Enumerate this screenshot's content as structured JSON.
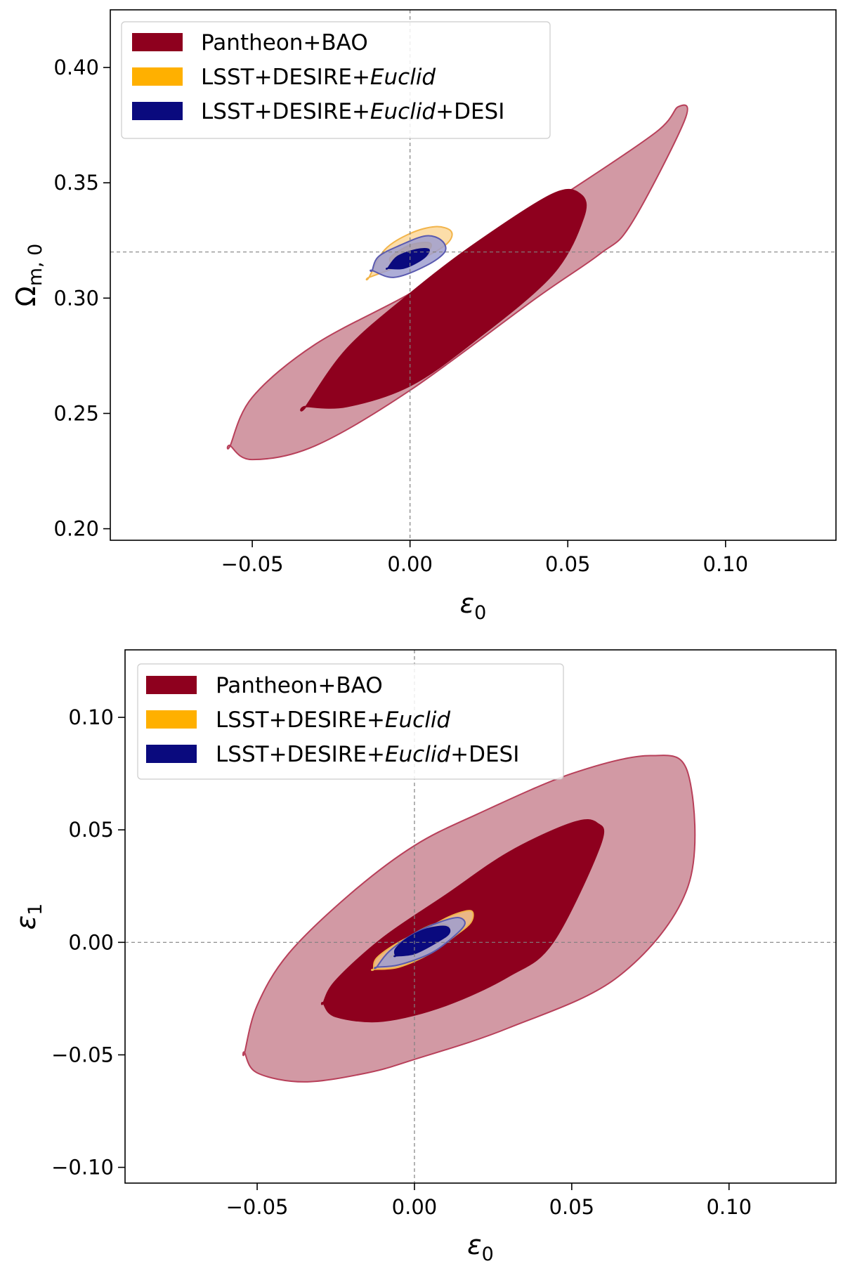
{
  "chart_data": [
    {
      "type": "contour",
      "title": "",
      "xlabel": "ε",
      "xlabel_sub": "0",
      "ylabel": "Ω",
      "ylabel_sub": "m, 0",
      "xlim": [
        -0.095,
        0.135
      ],
      "ylim": [
        0.195,
        0.425
      ],
      "xticks": [
        -0.05,
        0.0,
        0.05,
        0.1
      ],
      "xtick_labels": [
        "−0.05",
        "0.00",
        "0.05",
        "0.10"
      ],
      "yticks": [
        0.2,
        0.25,
        0.3,
        0.35,
        0.4
      ],
      "ytick_labels": [
        "0.20",
        "0.25",
        "0.30",
        "0.35",
        "0.40"
      ],
      "reference": {
        "x": 0.0,
        "y": 0.32
      },
      "legend": {
        "placement": "top-left",
        "entries": [
          {
            "label": "Pantheon+BAO",
            "color": "#8e001e"
          },
          {
            "label_plain": "LSST+DESIRE+",
            "label_italic": "Euclid",
            "label_tail": "",
            "color": "#ffb000"
          },
          {
            "label_plain": "LSST+DESIRE+",
            "label_italic": "Euclid",
            "label_tail": "+DESI",
            "color": "#0a0a7e"
          }
        ]
      },
      "series": [
        {
          "name": "Pantheon+BAO 2σ",
          "color": "#8e001e",
          "level": "2sigma",
          "x": [
            -0.057,
            -0.05,
            -0.03,
            0.0,
            0.04,
            0.06,
            0.07,
            0.087,
            0.085,
            0.078,
            0.05,
            0.02,
            0.0,
            -0.03,
            -0.05,
            -0.057
          ],
          "y": [
            0.236,
            0.23,
            0.236,
            0.26,
            0.3,
            0.319,
            0.332,
            0.377,
            0.383,
            0.372,
            0.346,
            0.32,
            0.302,
            0.28,
            0.257,
            0.236
          ]
        },
        {
          "name": "Pantheon+BAO 1σ",
          "color": "#8e001e",
          "level": "1sigma",
          "x": [
            -0.033,
            -0.02,
            0.0,
            0.02,
            0.045,
            0.055,
            0.054,
            0.045,
            0.02,
            0.0,
            -0.02,
            -0.033
          ],
          "y": [
            0.253,
            0.253,
            0.262,
            0.281,
            0.31,
            0.335,
            0.345,
            0.345,
            0.323,
            0.302,
            0.278,
            0.253
          ]
        },
        {
          "name": "LSST+DESIRE+Euclid 2σ",
          "color": "#ffb000",
          "level": "2sigma",
          "x": [
            -0.013,
            -0.005,
            0.005,
            0.012,
            0.013,
            0.008,
            0.0,
            -0.008,
            -0.013
          ],
          "y": [
            0.309,
            0.313,
            0.318,
            0.324,
            0.329,
            0.331,
            0.328,
            0.321,
            0.309
          ]
        },
        {
          "name": "LSST+DESIRE+Euclid 1σ",
          "color": "#ffb000",
          "level": "1sigma",
          "x": [
            -0.006,
            0.0,
            0.006,
            0.006,
            0.0,
            -0.006,
            -0.006
          ],
          "y": [
            0.315,
            0.316,
            0.321,
            0.324,
            0.323,
            0.318,
            0.315
          ]
        },
        {
          "name": "LSST+DESIRE+Euclid+DESI 2σ",
          "color": "#0a0a7e",
          "level": "2sigma",
          "x": [
            -0.012,
            -0.005,
            0.005,
            0.011,
            0.01,
            0.005,
            -0.003,
            -0.01,
            -0.012
          ],
          "y": [
            0.312,
            0.309,
            0.314,
            0.32,
            0.325,
            0.327,
            0.323,
            0.318,
            0.312
          ]
        },
        {
          "name": "LSST+DESIRE+Euclid+DESI 1σ",
          "color": "#0a0a7e",
          "level": "1sigma",
          "x": [
            -0.007,
            -0.002,
            0.004,
            0.006,
            0.002,
            -0.004,
            -0.007
          ],
          "y": [
            0.313,
            0.313,
            0.317,
            0.321,
            0.321,
            0.318,
            0.313
          ]
        }
      ]
    },
    {
      "type": "contour",
      "title": "",
      "xlabel": "ε",
      "xlabel_sub": "0",
      "ylabel": "ε",
      "ylabel_sub": "1",
      "xlim": [
        -0.092,
        0.134
      ],
      "ylim": [
        -0.107,
        0.13
      ],
      "xticks": [
        -0.05,
        0.0,
        0.05,
        0.1
      ],
      "xtick_labels": [
        "−0.05",
        "0.00",
        "0.05",
        "0.10"
      ],
      "yticks": [
        -0.1,
        -0.05,
        0.0,
        0.05,
        0.1
      ],
      "ytick_labels": [
        "−0.10",
        "−0.05",
        "0.00",
        "0.05",
        "0.10"
      ],
      "reference": {
        "x": 0.0,
        "y": 0.0
      },
      "legend": {
        "placement": "top-left",
        "entries": [
          {
            "label": "Pantheon+BAO",
            "color": "#8e001e"
          },
          {
            "label_plain": "LSST+DESIRE+",
            "label_italic": "Euclid",
            "label_tail": "",
            "color": "#ffb000"
          },
          {
            "label_plain": "LSST+DESIRE+",
            "label_italic": "Euclid",
            "label_tail": "+DESI",
            "color": "#0a0a7e"
          }
        ]
      },
      "series": [
        {
          "name": "Pantheon+BAO 2σ",
          "color": "#8e001e",
          "level": "2sigma",
          "x": [
            -0.054,
            -0.05,
            -0.035,
            -0.015,
            0.0,
            0.03,
            0.065,
            0.087,
            0.087,
            0.075,
            0.05,
            0.02,
            0.0,
            -0.02,
            -0.04,
            -0.05,
            -0.054
          ],
          "y": [
            -0.049,
            -0.058,
            -0.062,
            -0.058,
            -0.052,
            -0.038,
            -0.015,
            0.025,
            0.075,
            0.083,
            0.075,
            0.057,
            0.043,
            0.022,
            -0.005,
            -0.028,
            -0.049
          ]
        },
        {
          "name": "Pantheon+BAO 1σ",
          "color": "#8e001e",
          "level": "1sigma",
          "x": [
            -0.029,
            -0.025,
            -0.01,
            0.01,
            0.03,
            0.044,
            0.059,
            0.058,
            0.05,
            0.03,
            0.01,
            -0.01,
            -0.025,
            -0.029
          ],
          "y": [
            -0.027,
            -0.033,
            -0.035,
            -0.028,
            -0.015,
            0.0,
            0.043,
            0.053,
            0.053,
            0.04,
            0.021,
            0.002,
            -0.017,
            -0.027
          ]
        },
        {
          "name": "LSST+DESIRE+Euclid 2σ",
          "color": "#ffb000",
          "level": "2sigma",
          "x": [
            -0.013,
            -0.005,
            0.005,
            0.013,
            0.018,
            0.018,
            0.012,
            0.005,
            -0.005,
            -0.012,
            -0.013
          ],
          "y": [
            -0.012,
            -0.011,
            -0.005,
            0.003,
            0.009,
            0.014,
            0.012,
            0.007,
            0.0,
            -0.007,
            -0.012
          ]
        },
        {
          "name": "LSST+DESIRE+Euclid 1σ",
          "color": "#ffb000",
          "level": "1sigma",
          "x": [
            -0.007,
            0.0,
            0.008,
            0.011,
            0.006,
            -0.002,
            -0.007
          ],
          "y": [
            -0.006,
            -0.004,
            0.002,
            0.007,
            0.008,
            0.002,
            -0.006
          ]
        },
        {
          "name": "LSST+DESIRE+Euclid+DESI 2σ",
          "color": "#0a0a7e",
          "level": "2sigma",
          "x": [
            -0.012,
            -0.005,
            0.005,
            0.012,
            0.016,
            0.014,
            0.008,
            0.0,
            -0.008,
            -0.012
          ],
          "y": [
            -0.011,
            -0.01,
            -0.005,
            0.002,
            0.008,
            0.011,
            0.009,
            0.004,
            -0.004,
            -0.011
          ]
        },
        {
          "name": "LSST+DESIRE+Euclid+DESI 1σ",
          "color": "#0a0a7e",
          "level": "1sigma",
          "x": [
            -0.006,
            0.0,
            0.007,
            0.011,
            0.01,
            0.004,
            -0.002,
            -0.006,
            -0.006
          ],
          "y": [
            -0.006,
            -0.005,
            0.0,
            0.004,
            0.007,
            0.006,
            0.002,
            -0.003,
            -0.006
          ]
        }
      ]
    }
  ]
}
